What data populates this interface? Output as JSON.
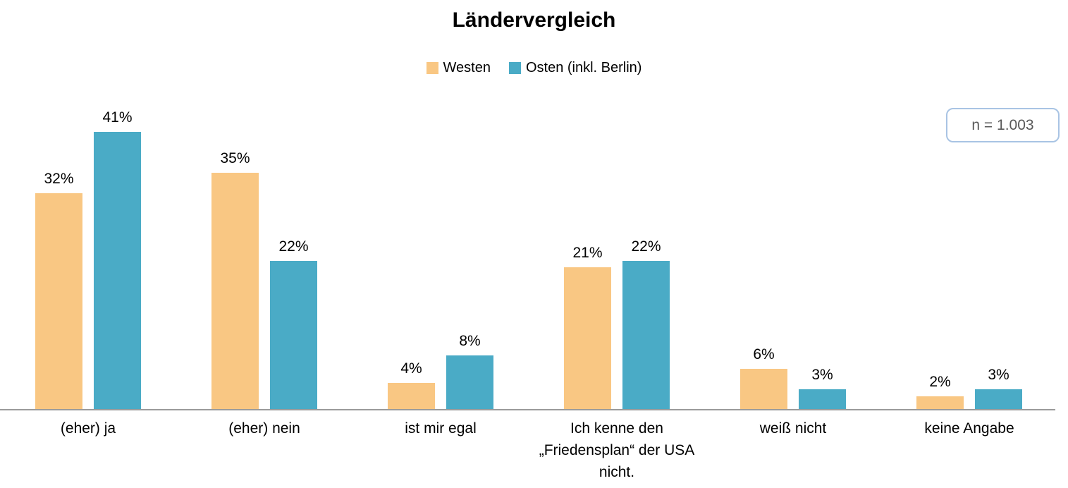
{
  "header": {
    "title": "Ländervergleich"
  },
  "annotation": {
    "text": "n = 1.003",
    "border_color": "#A9C4E4",
    "text_color": "#595959"
  },
  "axis": {
    "line_color": "#9B9B9B"
  },
  "chart_data": {
    "type": "bar",
    "title": "Ländervergleich",
    "categories": [
      "(eher) ja",
      "(eher) nein",
      "ist mir egal",
      "Ich kenne den „Friedensplan“ der USA nicht.",
      "weiß nicht",
      "keine Angabe"
    ],
    "series": [
      {
        "name": "Westen",
        "color": "#F9C783",
        "values": [
          32,
          35,
          4,
          21,
          6,
          2
        ]
      },
      {
        "name": "Osten (inkl. Berlin)",
        "color": "#4AABC6",
        "values": [
          41,
          22,
          8,
          22,
          3,
          3
        ]
      }
    ],
    "value_suffix": "%",
    "data_labels": true,
    "xlabel": "",
    "ylabel": "",
    "ylim": [
      0,
      45
    ],
    "grid": false,
    "legend_position": "top",
    "sample_size_note": "n = 1.003"
  }
}
